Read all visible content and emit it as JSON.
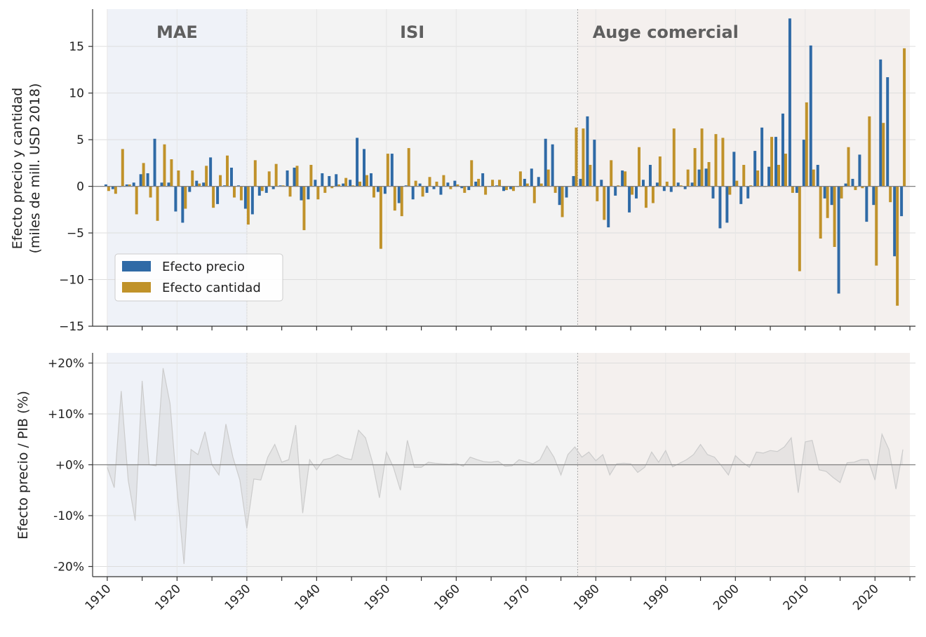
{
  "chart_data": [
    {
      "type": "bar",
      "ylabel_lines": [
        "Efecto precio y cantidad",
        "(miles de mill. USD 2018)"
      ],
      "ylim": [
        -15,
        19
      ],
      "yticks": [
        {
          "value": 15,
          "label": "15"
        },
        {
          "value": 10,
          "label": "10"
        },
        {
          "value": 5,
          "label": "5"
        },
        {
          "value": 0,
          "label": "0"
        },
        {
          "value": -5,
          "label": "−5"
        },
        {
          "value": -10,
          "label": "−10"
        },
        {
          "value": -15,
          "label": "−15"
        }
      ],
      "grid": true,
      "legend_position": "lower-left",
      "x": [
        1910,
        1911,
        1912,
        1913,
        1914,
        1915,
        1916,
        1917,
        1918,
        1919,
        1920,
        1921,
        1922,
        1923,
        1924,
        1925,
        1926,
        1927,
        1928,
        1929,
        1930,
        1931,
        1932,
        1933,
        1934,
        1935,
        1936,
        1937,
        1938,
        1939,
        1940,
        1941,
        1942,
        1943,
        1944,
        1945,
        1946,
        1947,
        1948,
        1949,
        1950,
        1951,
        1952,
        1953,
        1954,
        1955,
        1956,
        1957,
        1958,
        1959,
        1960,
        1961,
        1962,
        1963,
        1964,
        1965,
        1966,
        1967,
        1968,
        1969,
        1970,
        1971,
        1972,
        1973,
        1974,
        1975,
        1976,
        1977,
        1978,
        1979,
        1980,
        1981,
        1982,
        1983,
        1984,
        1985,
        1986,
        1987,
        1988,
        1989,
        1990,
        1991,
        1992,
        1993,
        1994,
        1995,
        1996,
        1997,
        1998,
        1999,
        2000,
        2001,
        2002,
        2003,
        2004,
        2005,
        2006,
        2007,
        2008,
        2009,
        2010,
        2011,
        2012,
        2013,
        2014,
        2015,
        2016,
        2017,
        2018,
        2019,
        2020,
        2021,
        2022,
        2023,
        2024
      ],
      "series": [
        {
          "name": "Efecto precio",
          "color": "#2f6aa6",
          "values": [
            0.2,
            -0.3,
            0.0,
            0.2,
            0.4,
            1.3,
            1.4,
            5.1,
            0.4,
            0.4,
            -2.7,
            -3.9,
            -0.6,
            0.6,
            0.4,
            3.1,
            -1.9,
            0.1,
            2.0,
            0.1,
            -2.4,
            -3.0,
            -1.0,
            -0.7,
            -0.3,
            0.1,
            1.7,
            2.0,
            -1.5,
            -1.4,
            0.7,
            1.4,
            1.1,
            1.3,
            0.3,
            0.7,
            5.2,
            4.0,
            1.4,
            -0.6,
            -0.8,
            3.5,
            -1.8,
            0.1,
            -1.4,
            0.3,
            -0.7,
            -0.3,
            -0.9,
            0.4,
            0.6,
            -0.2,
            -0.4,
            0.5,
            1.4,
            0.0,
            0.1,
            -0.5,
            -0.3,
            0.0,
            0.8,
            1.9,
            1.0,
            5.1,
            4.5,
            -2.0,
            -1.2,
            1.1,
            0.8,
            7.5,
            5.0,
            0.7,
            -4.4,
            -1.0,
            1.7,
            -2.8,
            -1.3,
            0.7,
            2.3,
            0.4,
            -0.5,
            -0.6,
            0.4,
            -0.3,
            0.4,
            1.8,
            1.9,
            -1.3,
            -4.5,
            -3.9,
            3.7,
            -1.9,
            -1.3,
            3.8,
            6.3,
            2.1,
            5.3,
            7.8,
            18.0,
            -0.7,
            5.0,
            15.1,
            2.3,
            -1.3,
            -2.0,
            -11.5,
            0.3,
            0.8,
            3.4,
            -3.8,
            -2.0,
            13.6,
            11.7,
            -7.5,
            -3.2
          ]
        },
        {
          "name": "Efecto cantidad",
          "color": "#c0922a",
          "values": [
            -0.5,
            -0.8,
            4.0,
            0.2,
            -3.0,
            2.5,
            -1.2,
            -3.7,
            4.5,
            2.9,
            1.7,
            -2.4,
            1.7,
            0.3,
            2.2,
            -2.3,
            1.2,
            3.3,
            -1.2,
            -1.5,
            -4.1,
            2.8,
            -0.5,
            1.6,
            2.4,
            0.1,
            -1.1,
            2.2,
            -4.7,
            2.3,
            -1.4,
            -0.7,
            -0.2,
            0.2,
            0.9,
            0.1,
            0.5,
            1.2,
            -1.2,
            -6.7,
            3.5,
            -2.6,
            -3.2,
            4.1,
            0.6,
            -1.1,
            1.0,
            0.5,
            1.2,
            -0.3,
            0.2,
            -0.7,
            2.8,
            0.8,
            -0.9,
            0.7,
            0.7,
            -0.4,
            -0.5,
            1.6,
            0.3,
            -1.8,
            0.3,
            1.8,
            -0.7,
            -3.3,
            0.0,
            6.3,
            6.2,
            2.3,
            -1.6,
            -3.6,
            2.8,
            0.1,
            1.6,
            -0.9,
            4.2,
            -2.3,
            -1.8,
            3.2,
            0.5,
            6.2,
            0.1,
            1.8,
            4.1,
            6.2,
            2.6,
            5.6,
            5.2,
            -0.9,
            0.6,
            2.3,
            0.1,
            1.7,
            0.0,
            5.3,
            2.3,
            3.5,
            -0.7,
            -9.1,
            9.0,
            1.8,
            -5.6,
            -3.4,
            -6.5,
            -1.3,
            4.2,
            -0.4,
            -0.2,
            7.5,
            -8.5,
            6.8,
            -1.7,
            -12.8,
            14.8
          ]
        }
      ]
    },
    {
      "type": "area",
      "ylabel": "Efecto precio / PIB (%)",
      "ylim": [
        -22,
        22
      ],
      "yticks": [
        {
          "value": 20,
          "label": "+20%"
        },
        {
          "value": 10,
          "label": "+10%"
        },
        {
          "value": 0,
          "label": "+0%"
        },
        {
          "value": -10,
          "label": "-10%"
        },
        {
          "value": -20,
          "label": "-20%"
        }
      ],
      "grid": true,
      "color": "#cccccc",
      "x": [
        1910,
        1911,
        1912,
        1913,
        1914,
        1915,
        1916,
        1917,
        1918,
        1919,
        1920,
        1921,
        1922,
        1923,
        1924,
        1925,
        1926,
        1927,
        1928,
        1929,
        1930,
        1931,
        1932,
        1933,
        1934,
        1935,
        1936,
        1937,
        1938,
        1939,
        1940,
        1941,
        1942,
        1943,
        1944,
        1945,
        1946,
        1947,
        1948,
        1949,
        1950,
        1951,
        1952,
        1953,
        1954,
        1955,
        1956,
        1957,
        1958,
        1959,
        1960,
        1961,
        1962,
        1963,
        1964,
        1965,
        1966,
        1967,
        1968,
        1969,
        1970,
        1971,
        1972,
        1973,
        1974,
        1975,
        1976,
        1977,
        1978,
        1979,
        1980,
        1981,
        1982,
        1983,
        1984,
        1985,
        1986,
        1987,
        1988,
        1989,
        1990,
        1991,
        1992,
        1993,
        1994,
        1995,
        1996,
        1997,
        1998,
        1999,
        2000,
        2001,
        2002,
        2003,
        2004,
        2005,
        2006,
        2007,
        2008,
        2009,
        2010,
        2011,
        2012,
        2013,
        2014,
        2015,
        2016,
        2017,
        2018,
        2019,
        2020,
        2021,
        2022,
        2023,
        2024
      ],
      "values": [
        -0.5,
        -4.5,
        14.5,
        -3.0,
        -11.0,
        16.5,
        0.0,
        -0.2,
        19.0,
        12.0,
        -5.0,
        -19.5,
        3.0,
        2.0,
        6.5,
        0.0,
        -2.0,
        8.0,
        1.5,
        -3.0,
        -12.5,
        -2.8,
        -3.0,
        1.5,
        4.0,
        0.5,
        1.0,
        7.8,
        -9.5,
        1.0,
        -1.0,
        1.0,
        1.3,
        2.0,
        1.3,
        1.0,
        6.8,
        5.3,
        0.5,
        -6.5,
        2.5,
        -0.5,
        -5.0,
        4.8,
        -0.5,
        -0.5,
        0.5,
        0.3,
        0.2,
        0.1,
        0.3,
        -0.3,
        1.5,
        1.0,
        0.6,
        0.5,
        0.7,
        -0.3,
        -0.2,
        1.0,
        0.6,
        0.2,
        1.0,
        3.7,
        1.5,
        -2.0,
        2.0,
        3.5,
        1.5,
        2.5,
        0.8,
        2.0,
        -2.0,
        0.2,
        0.3,
        0.2,
        -1.5,
        -0.5,
        2.5,
        0.5,
        2.8,
        -0.4,
        0.3,
        1.0,
        2.0,
        4.0,
        2.0,
        1.5,
        -0.2,
        -2.0,
        1.8,
        0.5,
        -0.5,
        2.5,
        2.3,
        2.8,
        2.6,
        3.5,
        5.3,
        -5.5,
        4.5,
        4.8,
        -1.0,
        -1.3,
        -2.5,
        -3.5,
        0.4,
        0.5,
        1.0,
        1.0,
        -3.0,
        6.0,
        3.0,
        -4.8,
        3.0
      ]
    }
  ],
  "xaxis": {
    "ticks": [
      {
        "value": 1910,
        "label": "1910"
      },
      {
        "value": 1920,
        "label": "1920"
      },
      {
        "value": 1930,
        "label": "1930"
      },
      {
        "value": 1940,
        "label": "1940"
      },
      {
        "value": 1950,
        "label": "1950"
      },
      {
        "value": 1960,
        "label": "1960"
      },
      {
        "value": 1970,
        "label": "1970"
      },
      {
        "value": 1980,
        "label": "1980"
      },
      {
        "value": 1990,
        "label": "1990"
      },
      {
        "value": 2000,
        "label": "2000"
      },
      {
        "value": 2010,
        "label": "2010"
      },
      {
        "value": 2020,
        "label": "2020"
      }
    ]
  },
  "eras": [
    {
      "label": "MAE",
      "start": 1910,
      "end": 1930,
      "color": "#e9eef5"
    },
    {
      "label": "ISI",
      "start": 1930,
      "end": 1977.4,
      "color": "#efefef"
    },
    {
      "label": "Auge comercial",
      "start": 1977.4,
      "end": 2025,
      "color": "#f0ebe8"
    }
  ]
}
